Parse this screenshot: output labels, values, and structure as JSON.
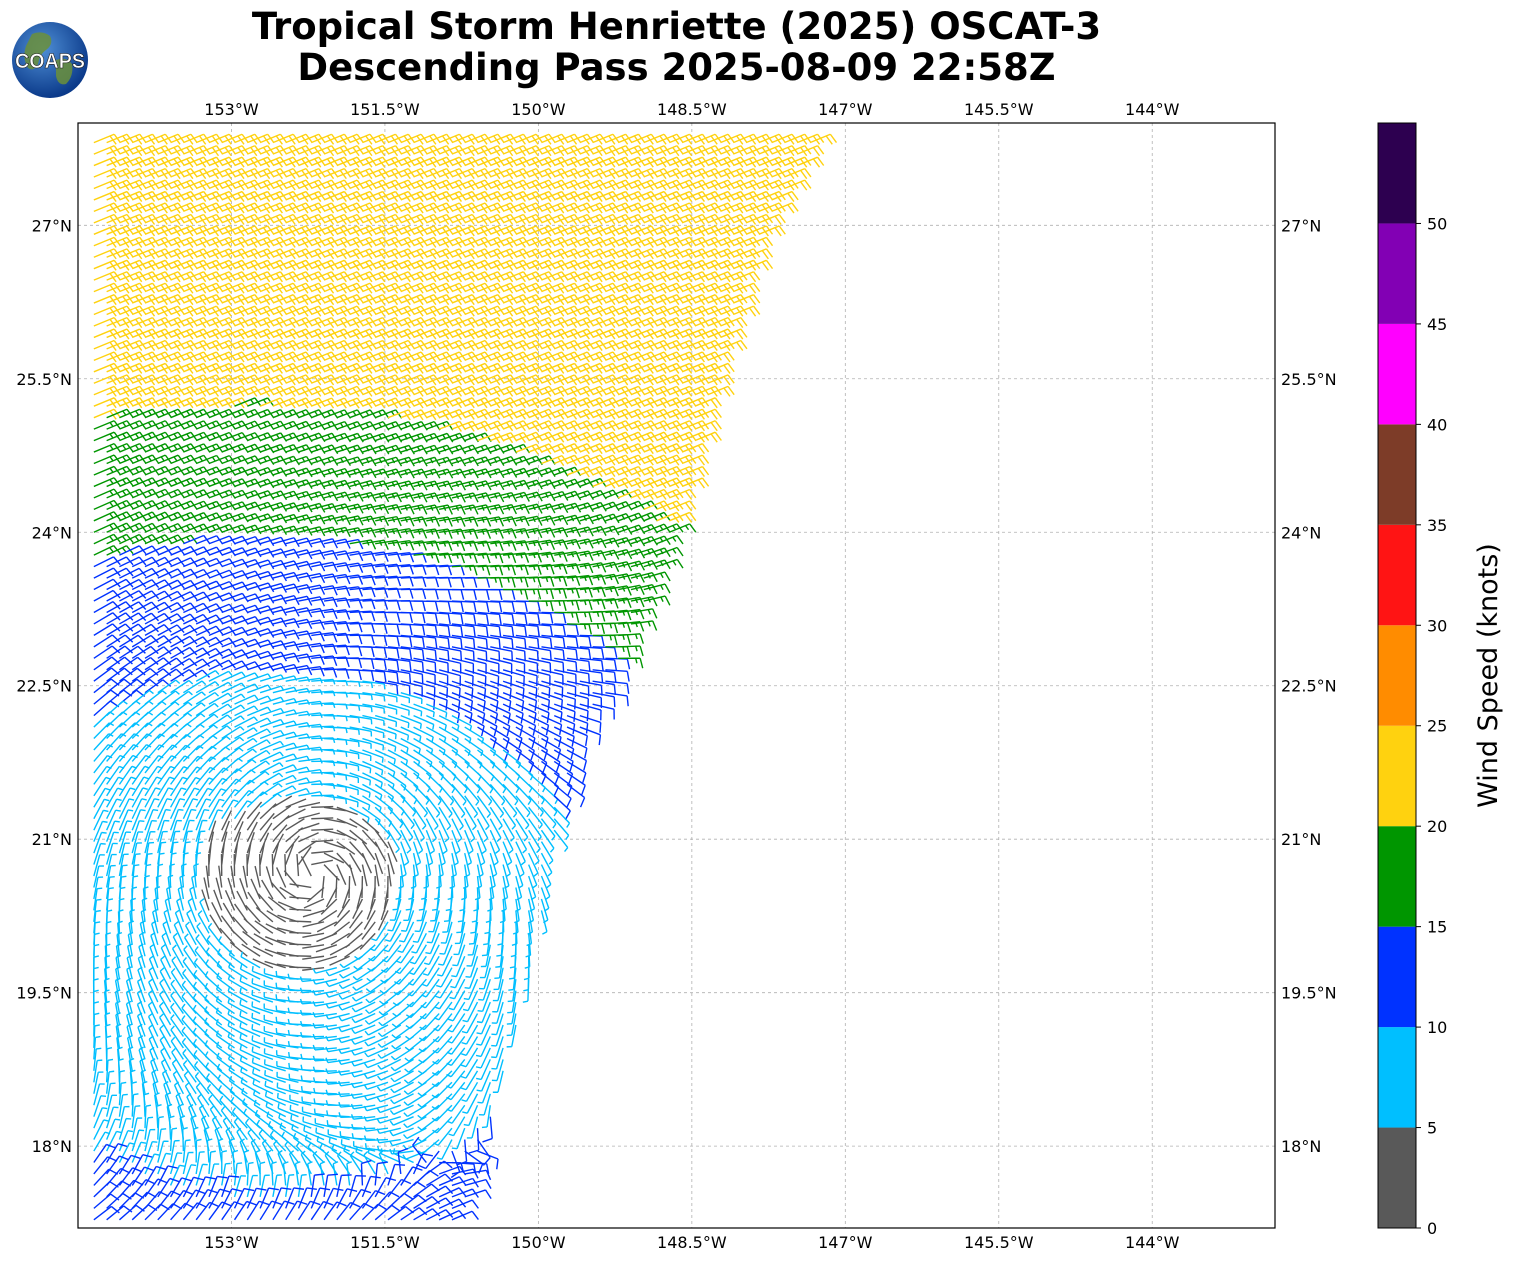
{
  "title": {
    "line1": "Tropical Storm Henriette (2025) OSCAT-3",
    "line2": "Descending Pass 2025-08-09 22:58Z"
  },
  "logo": {
    "text": "COAPS",
    "icon": "globe-icon"
  },
  "map": {
    "lon_range": [
      -154.5,
      -142.8
    ],
    "lat_range": [
      17.2,
      28.0
    ],
    "lon_ticks": [
      -153,
      -151.5,
      -150,
      -148.5,
      -147,
      -145.5,
      -144
    ],
    "lon_tick_labels": [
      "153°W",
      "151.5°W",
      "150°W",
      "148.5°W",
      "147°W",
      "145.5°W",
      "144°W"
    ],
    "lat_ticks": [
      18,
      19.5,
      21,
      22.5,
      24,
      25.5,
      27
    ],
    "lat_tick_labels": [
      "18°N",
      "19.5°N",
      "21°N",
      "22.5°N",
      "24°N",
      "25.5°N",
      "27°N"
    ],
    "grid": true
  },
  "wind_field": {
    "type": "wind-barbs",
    "swath_east_edge": [
      {
        "lat": 17.2,
        "lon": -150.8
      },
      {
        "lat": 19.5,
        "lon": -150.1
      },
      {
        "lat": 21.0,
        "lon": -149.85
      },
      {
        "lat": 22.0,
        "lon": -149.6
      },
      {
        "lat": 22.5,
        "lon": -149.3
      },
      {
        "lat": 24.0,
        "lon": -148.7
      },
      {
        "lat": 25.5,
        "lon": -148.3
      },
      {
        "lat": 27.0,
        "lon": -147.8
      },
      {
        "lat": 28.0,
        "lon": -147.2
      }
    ],
    "center": {
      "lat": 20.65,
      "lon": -152.2
    }
  },
  "colorbar": {
    "label": "Wind Speed (knots)",
    "bins": [
      {
        "from": 0,
        "to": 5,
        "color": "#595959"
      },
      {
        "from": 5,
        "to": 10,
        "color": "#00bfff"
      },
      {
        "from": 10,
        "to": 15,
        "color": "#0032ff"
      },
      {
        "from": 15,
        "to": 20,
        "color": "#009600"
      },
      {
        "from": 20,
        "to": 25,
        "color": "#ffd20f"
      },
      {
        "from": 25,
        "to": 30,
        "color": "#ff8c00"
      },
      {
        "from": 30,
        "to": 35,
        "color": "#ff1414"
      },
      {
        "from": 35,
        "to": 40,
        "color": "#7d3c28"
      },
      {
        "from": 40,
        "to": 45,
        "color": "#ff00ff"
      },
      {
        "from": 45,
        "to": 50,
        "color": "#8200b4"
      },
      {
        "from": 50,
        "to": 55,
        "color": "#2d0050"
      }
    ],
    "tick_labels": [
      "0",
      "5",
      "10",
      "15",
      "20",
      "25",
      "30",
      "35",
      "40",
      "45",
      "50"
    ]
  }
}
